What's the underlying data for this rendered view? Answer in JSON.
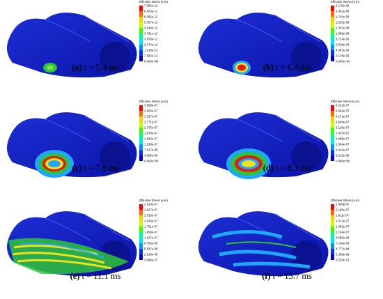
{
  "panels": [
    {
      "caption": {
        "label": "(a)",
        "text": "t = 5.4 ms"
      },
      "legend": {
        "title": "Effective Stress (v-m)",
        "labels": [
          "7.582e-12",
          "6.823e-12",
          "6.065e-12",
          "5.307e-12",
          "4.549e-12",
          "3.791e-12",
          "3.033e-12",
          "2.274e-12",
          "1.516e-12",
          "7.582e-13",
          "0.000e+00"
        ]
      }
    },
    {
      "caption": {
        "label": "(b)",
        "text": "t = 6.4 ms"
      },
      "legend": {
        "title": "Effective Stress (v-m)",
        "labels": [
          "2.178e-08",
          "1.961e-08",
          "1.743e-08",
          "1.525e-08",
          "1.307e-08",
          "1.089e-08",
          "8.714e-09",
          "6.536e-09",
          "4.357e-09",
          "2.178e-09",
          "0.000e+00"
        ]
      }
    },
    {
      "caption": {
        "label": "(c)",
        "text": "t = 7.6 ms"
      },
      "legend": {
        "title": "Effective Stress (v-m)",
        "labels": [
          "3.959e-07",
          "3.563e-07",
          "3.167e-07",
          "2.771e-07",
          "2.375e-07",
          "1.979e-07",
          "1.583e-07",
          "1.188e-07",
          "7.917e-08",
          "3.959e-08",
          "0.000e+00"
        ]
      }
    },
    {
      "caption": {
        "label": "(d)",
        "text": "t = 8.1 ms"
      },
      "legend": {
        "title": "Effective Stress (v-m)",
        "labels": [
          "5.213e-07",
          "4.692e-07",
          "4.171e-07",
          "3.649e-07",
          "3.128e-07",
          "2.607e-07",
          "2.085e-07",
          "1.564e-07",
          "1.043e-07",
          "5.213e-08",
          "0.000e+00"
        ]
      }
    },
    {
      "caption": {
        "label": "(e)",
        "text": "t = 11.1 ms"
      },
      "legend": {
        "title": "Effective Stress (v-m)",
        "labels": [
          "2.918e-07",
          "2.627e-07",
          "2.335e-07",
          "2.043e-07",
          "1.751e-07",
          "1.459e-07",
          "1.167e-07",
          "8.755e-08",
          "5.837e-08",
          "2.918e-08",
          "3.088e-27"
        ]
      }
    },
    {
      "caption": {
        "label": "(f)",
        "text": "t = 15.7 ms"
      },
      "legend": {
        "title": "Effective Stress (v-m)",
        "labels": [
          "2.389e-07",
          "2.150e-07",
          "1.911e-07",
          "1.672e-07",
          "1.433e-07",
          "1.194e-07",
          "9.555e-08",
          "7.166e-08",
          "4.777e-08",
          "2.389e-08",
          "3.219e-13"
        ]
      }
    }
  ]
}
